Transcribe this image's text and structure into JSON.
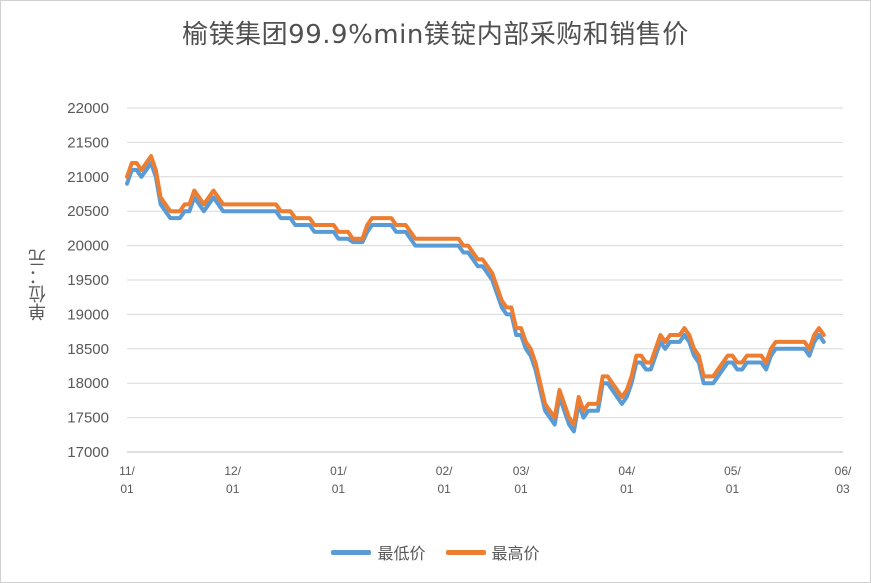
{
  "chart_data": {
    "type": "line",
    "title": "榆镁集团99.9%min镁锭内部采购和销售价",
    "ylabel": "单位：元",
    "ylim": [
      17000,
      22000
    ],
    "yticks": [
      17000,
      17500,
      18000,
      18500,
      19000,
      19500,
      20000,
      20500,
      21000,
      21500,
      22000
    ],
    "grid": true,
    "legend_position": "bottom",
    "x_ticks": [
      {
        "label": [
          "11/",
          "01"
        ],
        "pos": 0
      },
      {
        "label": [
          "12/",
          "01"
        ],
        "pos": 22
      },
      {
        "label": [
          "01/",
          "01"
        ],
        "pos": 44
      },
      {
        "label": [
          "02/",
          "01"
        ],
        "pos": 66
      },
      {
        "label": [
          "03/",
          "01"
        ],
        "pos": 82
      },
      {
        "label": [
          "04/",
          "01"
        ],
        "pos": 104
      },
      {
        "label": [
          "05/",
          "01"
        ],
        "pos": 126
      },
      {
        "label": [
          "06/",
          "03"
        ],
        "pos": 149
      }
    ],
    "x_count": 150,
    "series": [
      {
        "name": "最低价",
        "color": "#5B9BD5",
        "values": [
          20900,
          21100,
          21100,
          21000,
          21100,
          21200,
          21000,
          20600,
          20500,
          20400,
          20400,
          20400,
          20500,
          20500,
          20700,
          20600,
          20500,
          20600,
          20700,
          20600,
          20500,
          20500,
          20500,
          20500,
          20500,
          20500,
          20500,
          20500,
          20500,
          20500,
          20500,
          20500,
          20400,
          20400,
          20400,
          20300,
          20300,
          20300,
          20300,
          20200,
          20200,
          20200,
          20200,
          20200,
          20100,
          20100,
          20100,
          20050,
          20050,
          20050,
          20200,
          20300,
          20300,
          20300,
          20300,
          20300,
          20200,
          20200,
          20200,
          20100,
          20000,
          20000,
          20000,
          20000,
          20000,
          20000,
          20000,
          20000,
          20000,
          20000,
          19900,
          19900,
          19800,
          19700,
          19700,
          19600,
          19500,
          19300,
          19100,
          19000,
          19000,
          18700,
          18700,
          18500,
          18400,
          18200,
          17900,
          17600,
          17500,
          17400,
          17800,
          17600,
          17400,
          17300,
          17700,
          17500,
          17600,
          17600,
          17600,
          18000,
          18000,
          17900,
          17800,
          17700,
          17800,
          18000,
          18300,
          18300,
          18200,
          18200,
          18400,
          18600,
          18500,
          18600,
          18600,
          18600,
          18700,
          18600,
          18400,
          18300,
          18000,
          18000,
          18000,
          18100,
          18200,
          18300,
          18300,
          18200,
          18200,
          18300,
          18300,
          18300,
          18300,
          18200,
          18400,
          18500,
          18500,
          18500,
          18500,
          18500,
          18500,
          18500,
          18400,
          18600,
          18700,
          18600
        ]
      },
      {
        "name": "最高价",
        "color": "#ED7D31",
        "values": [
          21000,
          21200,
          21200,
          21100,
          21200,
          21300,
          21100,
          20700,
          20600,
          20500,
          20500,
          20500,
          20600,
          20600,
          20800,
          20700,
          20600,
          20700,
          20800,
          20700,
          20600,
          20600,
          20600,
          20600,
          20600,
          20600,
          20600,
          20600,
          20600,
          20600,
          20600,
          20600,
          20500,
          20500,
          20500,
          20400,
          20400,
          20400,
          20400,
          20300,
          20300,
          20300,
          20300,
          20300,
          20200,
          20200,
          20200,
          20100,
          20100,
          20100,
          20300,
          20400,
          20400,
          20400,
          20400,
          20400,
          20300,
          20300,
          20300,
          20200,
          20100,
          20100,
          20100,
          20100,
          20100,
          20100,
          20100,
          20100,
          20100,
          20100,
          20000,
          20000,
          19900,
          19800,
          19800,
          19700,
          19600,
          19400,
          19200,
          19100,
          19100,
          18800,
          18800,
          18600,
          18500,
          18300,
          18000,
          17700,
          17600,
          17500,
          17900,
          17700,
          17500,
          17400,
          17800,
          17600,
          17700,
          17700,
          17700,
          18100,
          18100,
          18000,
          17900,
          17800,
          17900,
          18100,
          18400,
          18400,
          18300,
          18300,
          18500,
          18700,
          18600,
          18700,
          18700,
          18700,
          18800,
          18700,
          18500,
          18400,
          18100,
          18100,
          18100,
          18200,
          18300,
          18400,
          18400,
          18300,
          18300,
          18400,
          18400,
          18400,
          18400,
          18300,
          18500,
          18600,
          18600,
          18600,
          18600,
          18600,
          18600,
          18600,
          18500,
          18700,
          18800,
          18700
        ]
      }
    ]
  },
  "legend": {
    "items": [
      {
        "label": "最低价",
        "color": "#5B9BD5"
      },
      {
        "label": "最高价",
        "color": "#ED7D31"
      }
    ]
  }
}
